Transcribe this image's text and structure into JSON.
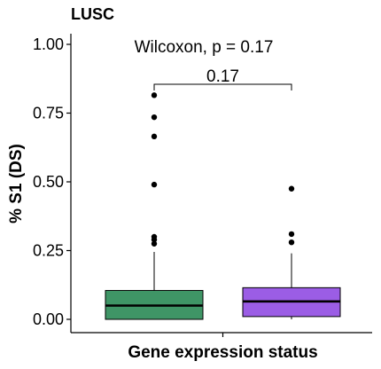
{
  "chart_data": {
    "type": "boxplot",
    "title": "LUSC",
    "xlabel": "Gene expression status",
    "ylabel": "% S1 (DS)",
    "ylim": [
      -0.05,
      1.03
    ],
    "yticks": [
      "0.00",
      "0.25",
      "0.50",
      "0.75",
      "1.00"
    ],
    "ytick_values": [
      0,
      0.25,
      0.5,
      0.75,
      1.0
    ],
    "test_label": "Wilcoxon, p = 0.17",
    "bracket_label": "0.17",
    "legend": "none",
    "grid": false,
    "series": [
      {
        "color": "#3f9566",
        "q1": 0.0,
        "median": 0.05,
        "q3": 0.105,
        "whisker_low": 0.0,
        "whisker_high": 0.245,
        "outliers": [
          0.275,
          0.29,
          0.3,
          0.49,
          0.665,
          0.735,
          0.815
        ]
      },
      {
        "color": "#9b5de5",
        "q1": 0.01,
        "median": 0.065,
        "q3": 0.115,
        "whisker_low": 0.0,
        "whisker_high": 0.24,
        "outliers": [
          0.28,
          0.31,
          0.475
        ]
      }
    ]
  }
}
